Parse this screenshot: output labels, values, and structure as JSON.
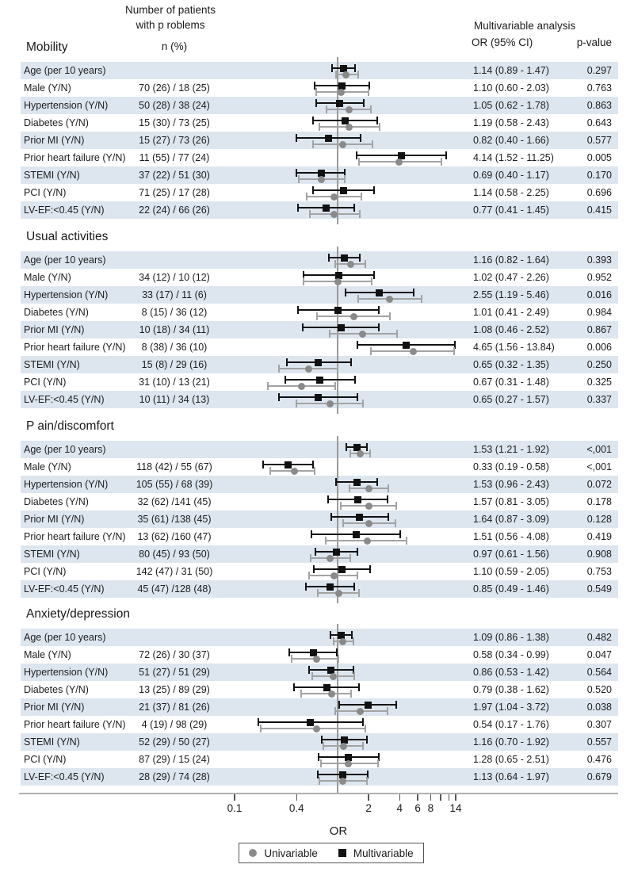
{
  "header": {
    "n_patients_line1": "Number of patients",
    "n_patients_line2": "with p roblems",
    "n_pct": "n (%)",
    "multivariable": "Multivariable analysis",
    "or_ci": "OR (95% CI)",
    "p_value": "p-value"
  },
  "axis": {
    "label": "OR"
  },
  "legend": {
    "items": [
      {
        "marker": "circle",
        "color": "#8a8a8a",
        "label": "Univariable"
      },
      {
        "marker": "square",
        "color": "#111111",
        "label": "Multivariable"
      }
    ]
  },
  "colors": {
    "stripe": "#dde6ef",
    "multivariable": "#111111",
    "univariable_marker": "#8a8a8a",
    "univariable_line": "#a3a3a3",
    "reference_line": "#9a9a9a",
    "axis_line": "#b0b0b0",
    "text": "#1c1c1c"
  },
  "chart_data": {
    "type": "forest",
    "x_scale": "log",
    "x_axis": {
      "label": "OR",
      "ticks": [
        0.1,
        0.4,
        2,
        4,
        6,
        8,
        10,
        12,
        14
      ],
      "labeled_ticks": [
        0.1,
        0.4,
        2,
        4,
        6,
        8,
        14
      ],
      "reference_value": 1
    },
    "series_names": [
      "Univariable",
      "Multivariable"
    ],
    "note": "univariable values estimated from plot; multivariable values printed on figure",
    "sections": [
      {
        "title": "Mobility",
        "rows": [
          {
            "label": "Age (per 10 years)",
            "n": "",
            "or_ci": "1.14 (0.89 - 1.47)",
            "p": "0.297",
            "multivariable": {
              "or": 1.14,
              "lo": 0.89,
              "hi": 1.47
            },
            "univariable_est": {
              "or": 1.21,
              "lo": 0.96,
              "hi": 1.58
            }
          },
          {
            "label": "Male (Y/N)",
            "n": "70 (26) / 18 (25)",
            "or_ci": "1.10 (0.60 - 2.03)",
            "p": "0.763",
            "multivariable": {
              "or": 1.1,
              "lo": 0.6,
              "hi": 2.03
            },
            "univariable_est": {
              "or": 1.08,
              "lo": 0.62,
              "hi": 2.0
            }
          },
          {
            "label": "Hypertension (Y/N)",
            "n": "50 (28) / 38 (24)",
            "or_ci": "1.05 (0.62 - 1.78)",
            "p": "0.863",
            "multivariable": {
              "or": 1.05,
              "lo": 0.62,
              "hi": 1.78
            },
            "univariable_est": {
              "or": 1.3,
              "lo": 0.78,
              "hi": 2.1
            }
          },
          {
            "label": "Diabetes (Y/N)",
            "n": "15 (30) / 73 (25)",
            "or_ci": "1.19 (0.58 - 2.43)",
            "p": "0.643",
            "multivariable": {
              "or": 1.19,
              "lo": 0.58,
              "hi": 2.43
            },
            "univariable_est": {
              "or": 1.3,
              "lo": 0.67,
              "hi": 2.55
            }
          },
          {
            "label": "Prior MI (Y/N)",
            "n": "15 (27) / 73 (26)",
            "or_ci": "0.82 (0.40 - 1.66)",
            "p": "0.577",
            "multivariable": {
              "or": 0.82,
              "lo": 0.4,
              "hi": 1.66
            },
            "univariable_est": {
              "or": 1.12,
              "lo": 0.58,
              "hi": 2.18
            }
          },
          {
            "label": "Prior heart failure (Y/N)",
            "n": "11 (55) / 77 (24)",
            "or_ci": "4.14 (1.52 - 11.25)",
            "p": "0.005",
            "multivariable": {
              "or": 4.14,
              "lo": 1.52,
              "hi": 11.25
            },
            "univariable_est": {
              "or": 3.95,
              "lo": 1.6,
              "hi": 10.1
            }
          },
          {
            "label": "STEMI (Y/N)",
            "n": "37 (22) / 51 (30)",
            "or_ci": "0.69 (0.40 - 1.17)",
            "p": "0.170",
            "multivariable": {
              "or": 0.69,
              "lo": 0.4,
              "hi": 1.17
            },
            "univariable_est": {
              "or": 0.69,
              "lo": 0.42,
              "hi": 1.17
            }
          },
          {
            "label": "PCI (Y/N)",
            "n": "71 (25) / 17 (28)",
            "or_ci": "1.14 (0.58 - 2.25)",
            "p": "0.696",
            "multivariable": {
              "or": 1.14,
              "lo": 0.58,
              "hi": 2.25
            },
            "univariable_est": {
              "or": 0.93,
              "lo": 0.5,
              "hi": 1.7
            }
          },
          {
            "label": "LV-EF:<0.45 (Y/N)",
            "n": "22 (24) / 66 (26)",
            "or_ci": "0.77 (0.41 - 1.45)",
            "p": "0.415",
            "multivariable": {
              "or": 0.77,
              "lo": 0.41,
              "hi": 1.45
            },
            "univariable_est": {
              "or": 0.92,
              "lo": 0.54,
              "hi": 1.64
            }
          }
        ]
      },
      {
        "title": "Usual activities",
        "rows": [
          {
            "label": "Age (per 10 years)",
            "n": "",
            "or_ci": "1.16 (0.82 - 1.64)",
            "p": "0.393",
            "multivariable": {
              "or": 1.16,
              "lo": 0.82,
              "hi": 1.64
            },
            "univariable_est": {
              "or": 1.33,
              "lo": 0.95,
              "hi": 1.85
            }
          },
          {
            "label": "Male (Y/N)",
            "n": "34 (12) / 10 (12)",
            "or_ci": "1.02 (0.47 - 2.26)",
            "p": "0.952",
            "multivariable": {
              "or": 1.02,
              "lo": 0.47,
              "hi": 2.26
            },
            "univariable_est": {
              "or": 1.0,
              "lo": 0.47,
              "hi": 2.15
            }
          },
          {
            "label": "Hypertension (Y/N)",
            "n": "33 (17) / 11 (6)",
            "or_ci": "2.55 (1.19 - 5.46)",
            "p": "0.016",
            "multivariable": {
              "or": 2.55,
              "lo": 1.19,
              "hi": 5.46
            },
            "univariable_est": {
              "or": 3.2,
              "lo": 1.58,
              "hi": 6.5
            }
          },
          {
            "label": "Diabetes (Y/N)",
            "n": "8 (15) / 36 (12)",
            "or_ci": "1.01 (0.41 - 2.49)",
            "p": "0.984",
            "multivariable": {
              "or": 1.01,
              "lo": 0.41,
              "hi": 2.49
            },
            "univariable_est": {
              "or": 1.45,
              "lo": 0.63,
              "hi": 3.2
            }
          },
          {
            "label": "Prior MI (Y/N)",
            "n": "10 (18) / 34 (11)",
            "or_ci": "1.08 (0.46 - 2.52)",
            "p": "0.867",
            "multivariable": {
              "or": 1.08,
              "lo": 0.46,
              "hi": 2.52
            },
            "univariable_est": {
              "or": 1.75,
              "lo": 0.84,
              "hi": 3.8
            }
          },
          {
            "label": "Prior heart failure (Y/N)",
            "n": "8 (38) / 36 (10)",
            "or_ci": "4.65 (1.56 - 13.84)",
            "p": "0.006",
            "multivariable": {
              "or": 4.65,
              "lo": 1.56,
              "hi": 13.84
            },
            "univariable_est": {
              "or": 5.4,
              "lo": 2.1,
              "hi": 13.5
            }
          },
          {
            "label": "STEMI (Y/N)",
            "n": "15 (8) / 29 (16)",
            "or_ci": "0.65 (0.32 - 1.35)",
            "p": "0.250",
            "multivariable": {
              "or": 0.65,
              "lo": 0.32,
              "hi": 1.35
            },
            "univariable_est": {
              "or": 0.52,
              "lo": 0.27,
              "hi": 1.0
            }
          },
          {
            "label": "PCI (Y/N)",
            "n": "31 (10) / 13 (21)",
            "or_ci": "0.67 (0.31 - 1.48)",
            "p": "0.325",
            "multivariable": {
              "or": 0.67,
              "lo": 0.31,
              "hi": 1.48
            },
            "univariable_est": {
              "or": 0.45,
              "lo": 0.21,
              "hi": 0.94
            }
          },
          {
            "label": "LV-EF:<0.45 (Y/N)",
            "n": "10 (11) / 34 (13)",
            "or_ci": "0.65 (0.27 - 1.57)",
            "p": "0.337",
            "multivariable": {
              "or": 0.65,
              "lo": 0.27,
              "hi": 1.57
            },
            "univariable_est": {
              "or": 0.85,
              "lo": 0.4,
              "hi": 1.75
            }
          }
        ]
      },
      {
        "title": "P ain/discomfort",
        "rows": [
          {
            "label": "Age (per 10 years)",
            "n": "",
            "or_ci": "1.53 (1.21 - 1.92)",
            "p": "<,001",
            "multivariable": {
              "or": 1.53,
              "lo": 1.21,
              "hi": 1.92
            },
            "univariable_est": {
              "or": 1.65,
              "lo": 1.32,
              "hi": 2.06
            }
          },
          {
            "label": "Male (Y/N)",
            "n": "118 (42) / 55 (67)",
            "or_ci": "0.33 (0.19 - 0.58)",
            "p": "<,001",
            "multivariable": {
              "or": 0.33,
              "lo": 0.19,
              "hi": 0.58
            },
            "univariable_est": {
              "or": 0.38,
              "lo": 0.22,
              "hi": 0.6
            }
          },
          {
            "label": "Hypertension (Y/N)",
            "n": "105 (55) / 68 (39)",
            "or_ci": "1.53 (0.96 - 2.43)",
            "p": "0.072",
            "multivariable": {
              "or": 1.53,
              "lo": 0.96,
              "hi": 2.43
            },
            "univariable_est": {
              "or": 2.0,
              "lo": 1.3,
              "hi": 3.1
            }
          },
          {
            "label": "Diabetes (Y/N)",
            "n": "32 (62) /141 (45)",
            "or_ci": "1.57 (0.81 - 3.05)",
            "p": "0.178",
            "multivariable": {
              "or": 1.57,
              "lo": 0.81,
              "hi": 3.05
            },
            "univariable_est": {
              "or": 2.0,
              "lo": 1.07,
              "hi": 3.7
            }
          },
          {
            "label": "Prior MI (Y/N)",
            "n": "35 (61) /138 (45)",
            "or_ci": "1.64 (0.87 - 3.09)",
            "p": "0.128",
            "multivariable": {
              "or": 1.64,
              "lo": 0.87,
              "hi": 3.09
            },
            "univariable_est": {
              "or": 2.0,
              "lo": 1.13,
              "hi": 3.65
            }
          },
          {
            "label": "Prior heart failure (Y/N)",
            "n": "13 (62) /160 (47)",
            "or_ci": "1.51 (0.56 - 4.08)",
            "p": "0.419",
            "multivariable": {
              "or": 1.51,
              "lo": 0.56,
              "hi": 4.08
            },
            "univariable_est": {
              "or": 1.95,
              "lo": 0.77,
              "hi": 4.7
            }
          },
          {
            "label": "STEMI (Y/N)",
            "n": "80 (45) / 93 (50)",
            "or_ci": "0.97 (0.61 - 1.56)",
            "p": "0.908",
            "multivariable": {
              "or": 0.97,
              "lo": 0.61,
              "hi": 1.56
            },
            "univariable_est": {
              "or": 0.85,
              "lo": 0.55,
              "hi": 1.32
            }
          },
          {
            "label": "PCI (Y/N)",
            "n": "142 (47) / 31 (50)",
            "or_ci": "1.10 (0.59 - 2.05)",
            "p": "0.753",
            "multivariable": {
              "or": 1.1,
              "lo": 0.59,
              "hi": 2.05
            },
            "univariable_est": {
              "or": 0.93,
              "lo": 0.53,
              "hi": 1.55
            }
          },
          {
            "label": "LV-EF:<0.45 (Y/N)",
            "n": "45 (47) /128 (48)",
            "or_ci": "0.85 (0.49 - 1.46)",
            "p": "0.549",
            "multivariable": {
              "or": 0.85,
              "lo": 0.49,
              "hi": 1.46
            },
            "univariable_est": {
              "or": 1.02,
              "lo": 0.64,
              "hi": 1.62
            }
          }
        ]
      },
      {
        "title": "Anxiety/depression",
        "rows": [
          {
            "label": "Age (per 10 years)",
            "n": "",
            "or_ci": "1.09 (0.86 - 1.38)",
            "p": "0.482",
            "multivariable": {
              "or": 1.09,
              "lo": 0.86,
              "hi": 1.38
            },
            "univariable_est": {
              "or": 1.13,
              "lo": 0.91,
              "hi": 1.42
            }
          },
          {
            "label": "Male (Y/N)",
            "n": "72 (26) / 30 (37)",
            "or_ci": "0.58 (0.34 - 0.99)",
            "p": "0.047",
            "multivariable": {
              "or": 0.58,
              "lo": 0.34,
              "hi": 0.99
            },
            "univariable_est": {
              "or": 0.62,
              "lo": 0.36,
              "hi": 1.02
            }
          },
          {
            "label": "Hypertension (Y/N)",
            "n": "51 (27) / 51 (29)",
            "or_ci": "0.86 (0.53 - 1.42)",
            "p": "0.564",
            "multivariable": {
              "or": 0.86,
              "lo": 0.53,
              "hi": 1.42
            },
            "univariable_est": {
              "or": 0.91,
              "lo": 0.57,
              "hi": 1.44
            }
          },
          {
            "label": "Diabetes (Y/N)",
            "n": "13 (25) / 89 (29)",
            "or_ci": "0.79 (0.38 - 1.62)",
            "p": "0.520",
            "multivariable": {
              "or": 0.79,
              "lo": 0.38,
              "hi": 1.62
            },
            "univariable_est": {
              "or": 0.87,
              "lo": 0.44,
              "hi": 1.36
            }
          },
          {
            "label": "Prior MI (Y/N)",
            "n": "21 (37) / 81 (26)",
            "or_ci": "1.97 (1.04 - 3.72)",
            "p": "0.038",
            "multivariable": {
              "or": 1.97,
              "lo": 1.04,
              "hi": 3.72
            },
            "univariable_est": {
              "or": 1.67,
              "lo": 0.94,
              "hi": 3.05
            }
          },
          {
            "label": "Prior heart failure (Y/N)",
            "n": "4 (19) / 98 (29)",
            "or_ci": "0.54 (0.17 - 1.76)",
            "p": "0.307",
            "multivariable": {
              "or": 0.54,
              "lo": 0.17,
              "hi": 1.76
            },
            "univariable_est": {
              "or": 0.63,
              "lo": 0.18,
              "hi": 1.85
            }
          },
          {
            "label": "STEMI (Y/N)",
            "n": "52 (29) / 50 (27)",
            "or_ci": "1.16 (0.70 - 1.92)",
            "p": "0.557",
            "multivariable": {
              "or": 1.16,
              "lo": 0.7,
              "hi": 1.92
            },
            "univariable_est": {
              "or": 1.15,
              "lo": 0.73,
              "hi": 1.77
            }
          },
          {
            "label": "PCI (Y/N)",
            "n": "87 (29) / 15 (24)",
            "or_ci": "1.28 (0.65 - 2.51)",
            "p": "0.476",
            "multivariable": {
              "or": 1.28,
              "lo": 0.65,
              "hi": 2.51
            },
            "univariable_est": {
              "or": 1.28,
              "lo": 0.69,
              "hi": 2.48
            }
          },
          {
            "label": "LV-EF:<0.45 (Y/N)",
            "n": "28 (29) / 74 (28)",
            "or_ci": "1.13 (0.64 - 1.97)",
            "p": "0.679",
            "multivariable": {
              "or": 1.13,
              "lo": 0.64,
              "hi": 1.97
            },
            "univariable_est": {
              "or": 1.12,
              "lo": 0.66,
              "hi": 1.93
            }
          }
        ]
      }
    ]
  }
}
